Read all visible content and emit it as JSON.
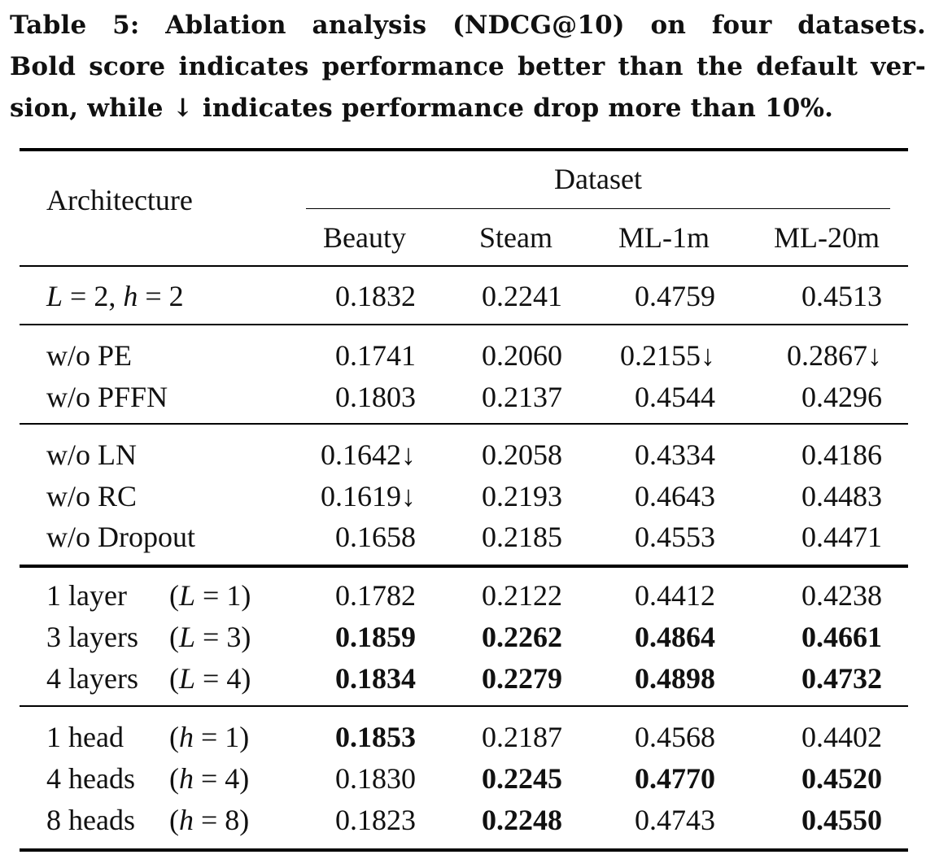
{
  "caption": {
    "line1": "Table 5: Ablation analysis (NDCG@10) on four datasets.",
    "line2": "Bold score indicates performance better than the default ver-",
    "line3": "sion, while ↓ indicates performance drop more than 10%."
  },
  "header": {
    "architecture": "Architecture",
    "dataset": "Dataset",
    "columns": [
      "Beauty",
      "Steam",
      "ML-1m",
      "ML-20m"
    ]
  },
  "rows": [
    {
      "label": "L = 2, h = 2",
      "paren": "",
      "values": [
        "0.1832",
        "0.2241",
        "0.4759",
        "0.4513"
      ],
      "bold": [
        false,
        false,
        false,
        false
      ]
    },
    {
      "label": "w/o PE",
      "paren": "",
      "values": [
        "0.1741",
        "0.2060",
        "0.2155↓",
        "0.2867↓"
      ],
      "bold": [
        false,
        false,
        false,
        false
      ]
    },
    {
      "label": "w/o PFFN",
      "paren": "",
      "values": [
        "0.1803",
        "0.2137",
        "0.4544",
        "0.4296"
      ],
      "bold": [
        false,
        false,
        false,
        false
      ]
    },
    {
      "label": "w/o LN",
      "paren": "",
      "values": [
        "0.1642↓",
        "0.2058",
        "0.4334",
        "0.4186"
      ],
      "bold": [
        false,
        false,
        false,
        false
      ]
    },
    {
      "label": "w/o RC",
      "paren": "",
      "values": [
        "0.1619↓",
        "0.2193",
        "0.4643",
        "0.4483"
      ],
      "bold": [
        false,
        false,
        false,
        false
      ]
    },
    {
      "label": "w/o Dropout",
      "paren": "",
      "values": [
        "0.1658",
        "0.2185",
        "0.4553",
        "0.4471"
      ],
      "bold": [
        false,
        false,
        false,
        false
      ]
    },
    {
      "label": "1 layer",
      "paren": "(L = 1)",
      "values": [
        "0.1782",
        "0.2122",
        "0.4412",
        "0.4238"
      ],
      "bold": [
        false,
        false,
        false,
        false
      ]
    },
    {
      "label": "3 layers",
      "paren": "(L = 3)",
      "values": [
        "0.1859",
        "0.2262",
        "0.4864",
        "0.4661"
      ],
      "bold": [
        true,
        true,
        true,
        true
      ]
    },
    {
      "label": "4 layers",
      "paren": "(L = 4)",
      "values": [
        "0.1834",
        "0.2279",
        "0.4898",
        "0.4732"
      ],
      "bold": [
        true,
        true,
        true,
        true
      ]
    },
    {
      "label": "1 head",
      "paren": "(h = 1)",
      "values": [
        "0.1853",
        "0.2187",
        "0.4568",
        "0.4402"
      ],
      "bold": [
        true,
        false,
        false,
        false
      ]
    },
    {
      "label": "4 heads",
      "paren": "(h = 4)",
      "values": [
        "0.1830",
        "0.2245",
        "0.4770",
        "0.4520"
      ],
      "bold": [
        false,
        true,
        true,
        true
      ]
    },
    {
      "label": "8 heads",
      "paren": "(h = 8)",
      "values": [
        "0.1823",
        "0.2248",
        "0.4743",
        "0.4550"
      ],
      "bold": [
        false,
        true,
        false,
        true
      ]
    }
  ]
}
